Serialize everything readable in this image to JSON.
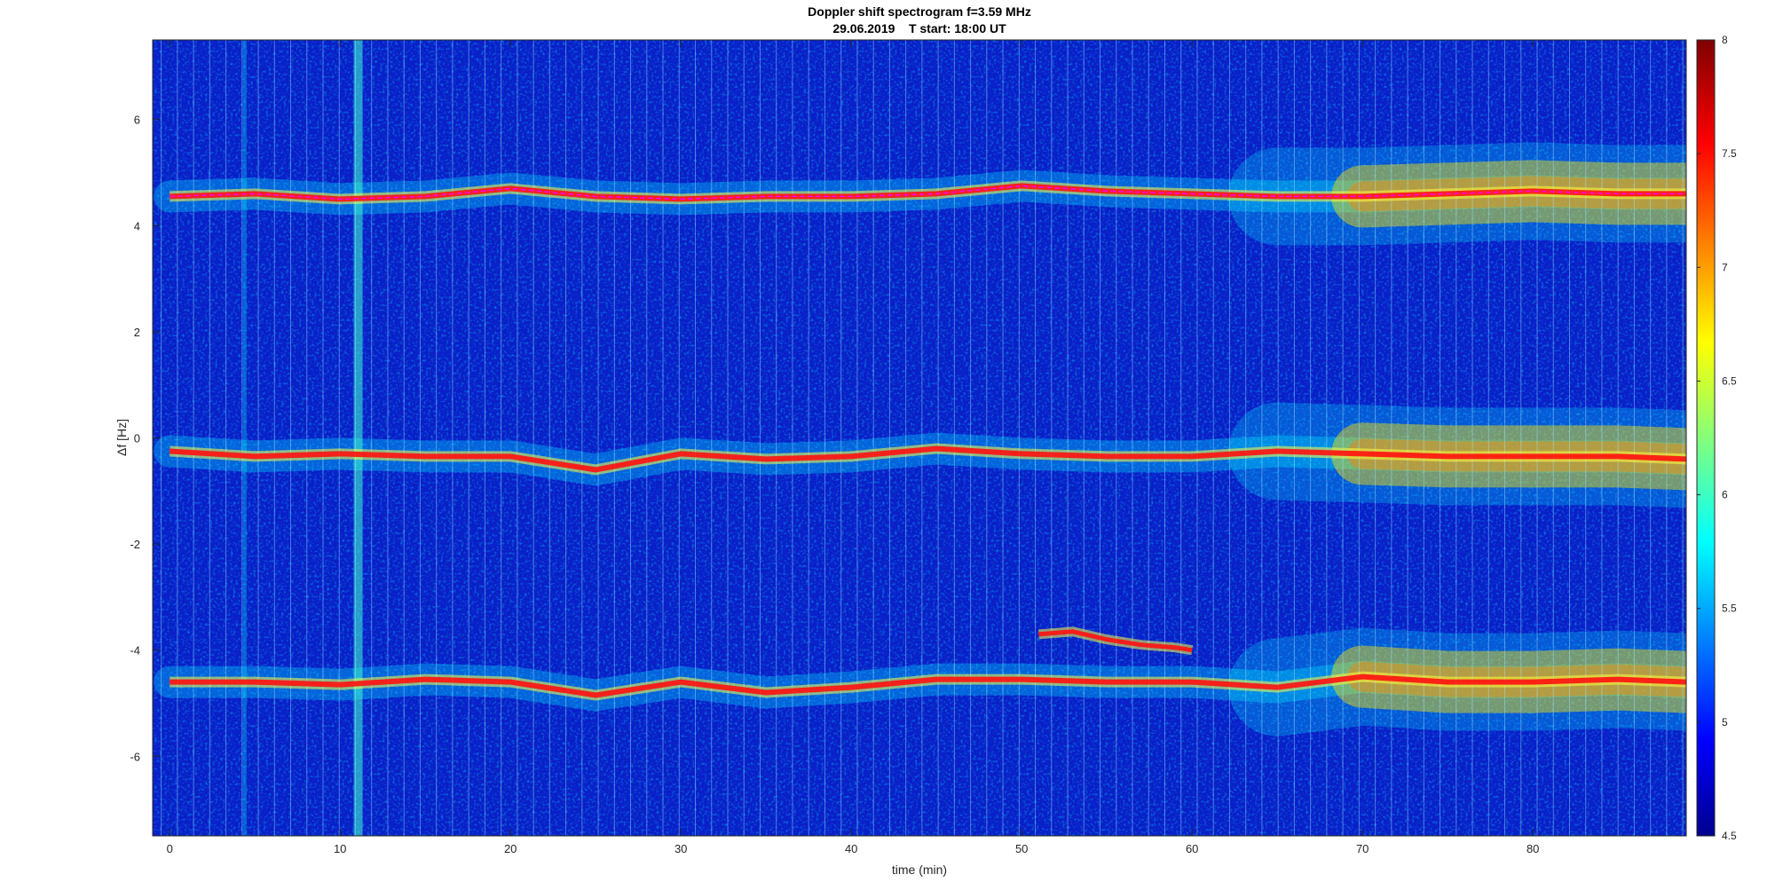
{
  "chart_data": {
    "type": "heatmap",
    "title": "Doppler shift spectrogram f=3.59 MHz",
    "subtitle": "29.06.2019    T start: 18:00 UT",
    "xlabel": "time (min)",
    "ylabel": "Δf [Hz]",
    "xlim": [
      -1,
      89
    ],
    "ylim": [
      -7.5,
      7.5
    ],
    "xticks": [
      0,
      10,
      20,
      30,
      40,
      50,
      60,
      70,
      80
    ],
    "yticks": [
      6,
      4,
      2,
      0,
      -2,
      -4,
      -6
    ],
    "colorbar": {
      "colormap": "jet",
      "range": [
        4.5,
        8
      ],
      "ticks": [
        8,
        7.5,
        7,
        6.5,
        6,
        5.5,
        5,
        4.5
      ]
    },
    "traces": [
      {
        "name": "upper",
        "time": [
          0,
          5,
          10,
          15,
          20,
          25,
          30,
          35,
          40,
          45,
          50,
          55,
          60,
          65,
          70,
          75,
          80,
          85,
          89
        ],
        "df": [
          4.55,
          4.6,
          4.5,
          4.55,
          4.7,
          4.55,
          4.5,
          4.55,
          4.55,
          4.6,
          4.75,
          4.65,
          4.6,
          4.55,
          4.55,
          4.6,
          4.65,
          4.6,
          4.6
        ]
      },
      {
        "name": "middle",
        "time": [
          0,
          5,
          10,
          15,
          20,
          25,
          30,
          35,
          40,
          45,
          50,
          55,
          60,
          65,
          70,
          75,
          80,
          85,
          89
        ],
        "df": [
          -0.25,
          -0.35,
          -0.3,
          -0.35,
          -0.35,
          -0.6,
          -0.3,
          -0.4,
          -0.35,
          -0.2,
          -0.3,
          -0.35,
          -0.35,
          -0.25,
          -0.3,
          -0.35,
          -0.35,
          -0.35,
          -0.4
        ]
      },
      {
        "name": "lower",
        "time": [
          0,
          5,
          10,
          15,
          20,
          25,
          30,
          35,
          40,
          45,
          50,
          55,
          60,
          65,
          70,
          75,
          80,
          85,
          89
        ],
        "df": [
          -4.6,
          -4.6,
          -4.65,
          -4.55,
          -4.6,
          -4.85,
          -4.6,
          -4.8,
          -4.7,
          -4.55,
          -4.55,
          -4.6,
          -4.6,
          -4.7,
          -4.5,
          -4.6,
          -4.6,
          -4.55,
          -4.6
        ]
      },
      {
        "name": "secondary",
        "time": [
          51,
          53,
          55,
          57,
          59,
          60
        ],
        "df": [
          -3.7,
          -3.65,
          -3.8,
          -3.9,
          -3.95,
          -4.0
        ]
      }
    ]
  },
  "colors": {
    "jet": [
      "#00008f",
      "#0000ff",
      "#00ffff",
      "#ffff00",
      "#ff0000",
      "#800000"
    ],
    "magenta_line": "#ff00ff",
    "black_line": "#000000"
  }
}
